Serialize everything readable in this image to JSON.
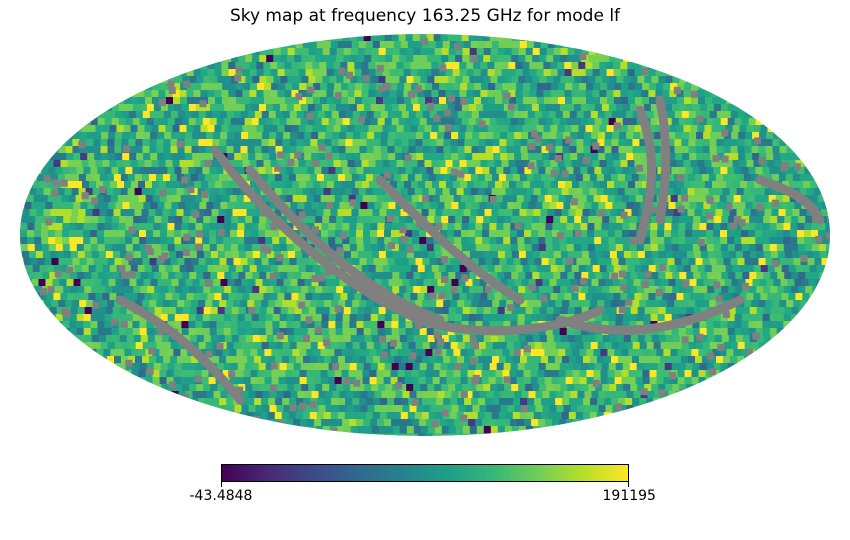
{
  "chart_data": {
    "type": "heatmap",
    "projection": "mollweide",
    "title": "Sky map at frequency 163.25 GHz for mode lf",
    "colormap": "viridis",
    "colorbar": {
      "min": -43.4848,
      "max": 191195,
      "min_label": "-43.4848",
      "max_label": "191195",
      "orientation": "horizontal"
    },
    "masked_color": "#808080",
    "background": "#ffffff"
  }
}
